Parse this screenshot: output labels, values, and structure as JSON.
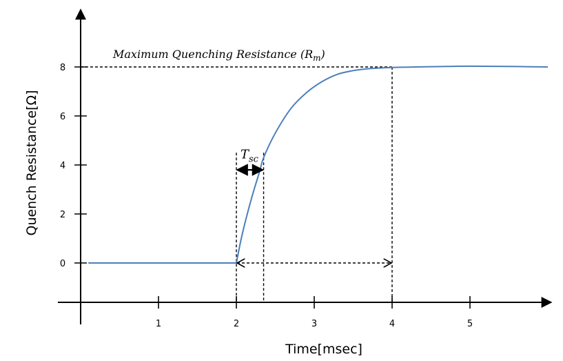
{
  "chart_data": {
    "type": "line",
    "title": "",
    "xlabel": "Time[msec]",
    "ylabel": "Quench Resistance[Ω]",
    "xlim": [
      0,
      6
    ],
    "ylim": [
      -1.6,
      9.3
    ],
    "x_ticks": [
      1,
      2,
      3,
      4,
      5
    ],
    "y_ticks": [
      0,
      2,
      4,
      6,
      8
    ],
    "grid": false,
    "series": [
      {
        "color": "#4a7ebb",
        "x": [
          0.1,
          0.5,
          1.0,
          1.5,
          2.0,
          2.05,
          2.1,
          2.2,
          2.3,
          2.35,
          2.5,
          2.7,
          2.9,
          3.1,
          3.3,
          3.5,
          3.7,
          4.0,
          4.3,
          4.7,
          5.0,
          5.5,
          6.0
        ],
        "y": [
          0,
          0,
          0,
          0,
          0,
          0.8,
          1.5,
          2.7,
          3.75,
          4.3,
          5.3,
          6.3,
          6.95,
          7.4,
          7.7,
          7.85,
          7.93,
          7.98,
          8.0,
          8.02,
          8.03,
          8.02,
          8.0
        ]
      }
    ],
    "annotations": {
      "max_label": "Maximum Quenching Resistance (",
      "max_symbol": "R",
      "max_sub": "m",
      "max_close": ")",
      "max_y": 8,
      "max_x_end": 4,
      "tsc_symbol": "T",
      "tsc_sub": "sc",
      "tsc_start": 2,
      "tsc_end": 2.35,
      "tsc_y": 3.8,
      "tsc_line_top": 4.5,
      "span_start": 2,
      "span_end": 4,
      "span_y": 0
    }
  }
}
